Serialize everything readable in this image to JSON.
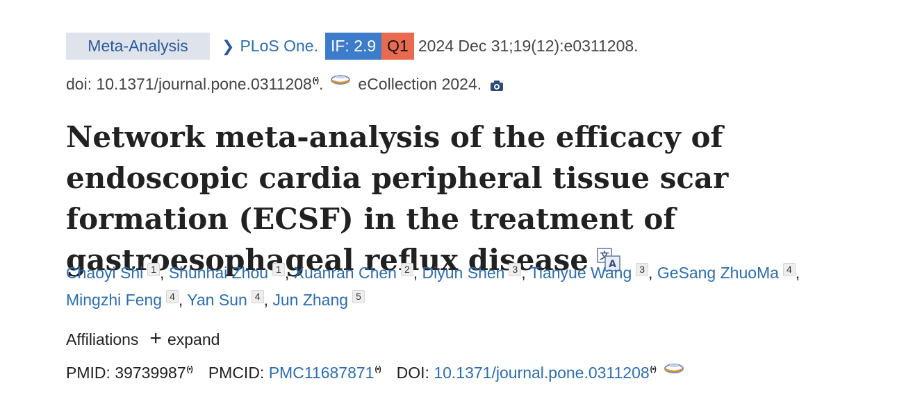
{
  "header": {
    "article_type": "Meta-Analysis",
    "journal": "PLoS One.",
    "impact_factor": "IF: 2.9",
    "quartile": "Q1",
    "citation": "2024 Dec 31;19(12):e0311208.",
    "doi_line": "doi: 10.1371/journal.pone.0311208",
    "ecollection": "eCollection 2024.",
    "colors": {
      "if_badge": "#3d7ccb",
      "q_badge": "#e86a4f",
      "type_badge": "#dfe3ec",
      "link": "#2a6db5"
    }
  },
  "title": "Network meta-analysis of the efficacy of endoscopic cardia peripheral tissue scar formation (ECSF) in the treatment of gastroesophageal reflux disease",
  "authors": [
    {
      "name": "Chaoyi Shi",
      "aff": "1"
    },
    {
      "name": "Shunhai Zhou",
      "aff": "1"
    },
    {
      "name": "Xuanran Chen",
      "aff": "2"
    },
    {
      "name": "Diyun Shen",
      "aff": "3"
    },
    {
      "name": "Tianyue Wang",
      "aff": "3"
    },
    {
      "name": "GeSang ZhuoMa",
      "aff": "4"
    },
    {
      "name": "Mingzhi Feng",
      "aff": "4"
    },
    {
      "name": "Yan Sun",
      "aff": "4"
    },
    {
      "name": "Jun Zhang",
      "aff": "5"
    }
  ],
  "affiliations": {
    "label": "Affiliations",
    "toggle": "expand"
  },
  "identifiers": {
    "pmid_label": "PMID:",
    "pmid": "39739987",
    "pmcid_label": "PMCID:",
    "pmcid": "PMC11687871",
    "doi_label": "DOI:",
    "doi": "10.1371/journal.pone.0311208"
  },
  "icons": [
    "chevron-right-icon",
    "signal-icon",
    "journal-logo-icon",
    "camera-icon",
    "translate-icon",
    "plus-icon"
  ]
}
